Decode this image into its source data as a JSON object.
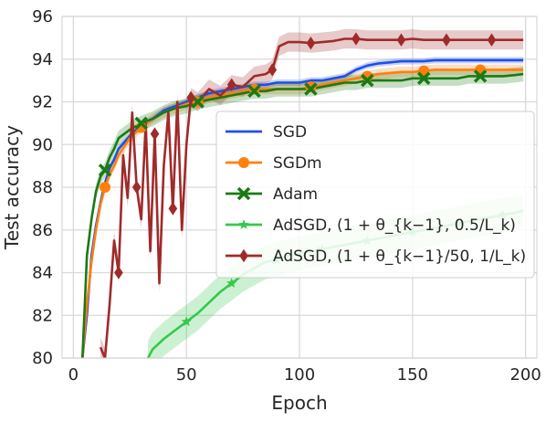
{
  "chart_data": {
    "type": "line",
    "xlabel": "Epoch",
    "ylabel": "Test accuracy",
    "xlim": [
      -5,
      205
    ],
    "ylim": [
      80,
      96
    ],
    "xticks": [
      0,
      50,
      100,
      150,
      200
    ],
    "yticks": [
      80,
      82,
      84,
      86,
      88,
      90,
      92,
      94,
      96
    ],
    "grid": true,
    "legend_position": "center-right",
    "series": [
      {
        "name": "SGD",
        "color": "#1f4fe6",
        "marker": "none",
        "x": [
          4,
          6,
          8,
          10,
          12,
          14,
          16,
          18,
          20,
          25,
          30,
          35,
          40,
          45,
          50,
          55,
          60,
          65,
          70,
          75,
          80,
          85,
          90,
          95,
          100,
          105,
          110,
          115,
          120,
          125,
          130,
          135,
          140,
          145,
          150,
          155,
          160,
          165,
          170,
          175,
          180,
          185,
          190,
          195,
          199
        ],
        "y": [
          80.0,
          82.0,
          84.8,
          86.2,
          87.3,
          88.2,
          88.9,
          89.3,
          89.8,
          90.4,
          90.9,
          91.2,
          91.6,
          91.8,
          92.0,
          92.2,
          92.4,
          92.5,
          92.6,
          92.7,
          92.8,
          92.8,
          92.9,
          92.9,
          92.9,
          93.0,
          93.0,
          93.1,
          93.2,
          93.5,
          93.7,
          93.8,
          93.85,
          93.9,
          93.9,
          93.9,
          93.95,
          93.95,
          93.95,
          93.95,
          93.95,
          93.95,
          93.95,
          93.95,
          93.95
        ],
        "band": 0.15
      },
      {
        "name": "SGDm",
        "color": "#ff7f0e",
        "marker": "circle",
        "x": [
          4,
          6,
          8,
          10,
          12,
          14,
          16,
          18,
          20,
          25,
          30,
          35,
          40,
          45,
          50,
          55,
          60,
          65,
          70,
          75,
          80,
          85,
          90,
          95,
          100,
          105,
          110,
          115,
          120,
          125,
          130,
          135,
          140,
          145,
          150,
          155,
          160,
          165,
          170,
          175,
          180,
          185,
          190,
          195,
          199
        ],
        "y": [
          80.0,
          82.5,
          84.5,
          86.0,
          87.2,
          88.0,
          88.6,
          89.0,
          89.5,
          90.3,
          90.8,
          91.2,
          91.5,
          91.7,
          91.9,
          92.0,
          92.2,
          92.3,
          92.4,
          92.5,
          92.6,
          92.6,
          92.6,
          92.6,
          92.6,
          92.7,
          92.8,
          92.9,
          93.0,
          93.1,
          93.2,
          93.3,
          93.35,
          93.4,
          93.4,
          93.45,
          93.5,
          93.5,
          93.5,
          93.5,
          93.5,
          93.5,
          93.5,
          93.5,
          93.5
        ],
        "band": 0.25
      },
      {
        "name": "Adam",
        "color": "#1a7a14",
        "marker": "x",
        "x": [
          4,
          6,
          8,
          10,
          12,
          14,
          16,
          18,
          20,
          25,
          30,
          35,
          40,
          45,
          50,
          55,
          60,
          65,
          70,
          75,
          80,
          85,
          90,
          95,
          100,
          105,
          110,
          115,
          120,
          125,
          130,
          135,
          140,
          145,
          150,
          155,
          160,
          165,
          170,
          175,
          180,
          185,
          190,
          195,
          199
        ],
        "y": [
          80.0,
          84.8,
          86.5,
          87.8,
          88.5,
          88.8,
          89.4,
          89.8,
          90.3,
          90.7,
          91.0,
          91.2,
          91.5,
          91.7,
          91.8,
          92.0,
          92.1,
          92.2,
          92.3,
          92.4,
          92.5,
          92.5,
          92.6,
          92.6,
          92.6,
          92.6,
          92.7,
          92.8,
          92.9,
          92.9,
          93.0,
          93.0,
          93.0,
          93.0,
          93.1,
          93.1,
          93.1,
          93.1,
          93.1,
          93.2,
          93.2,
          93.2,
          93.2,
          93.25,
          93.3
        ],
        "band": 0.35
      },
      {
        "name": "AdSGD, (1 + θ_{k−1}, 0.5/L_k)",
        "color": "#34c94a",
        "marker": "star",
        "x": [
          33,
          35,
          40,
          45,
          50,
          55,
          60,
          65,
          70,
          75,
          80,
          85,
          90,
          95,
          100,
          105,
          110,
          115,
          120,
          125,
          130,
          135,
          140,
          145,
          150,
          155,
          160,
          165,
          170,
          175,
          180,
          185,
          190,
          195,
          199
        ],
        "y": [
          80.0,
          80.4,
          80.9,
          81.3,
          81.7,
          82.1,
          82.6,
          83.1,
          83.5,
          83.9,
          84.2,
          84.5,
          84.6,
          84.8,
          84.9,
          85.0,
          85.1,
          85.2,
          85.3,
          85.4,
          85.5,
          85.6,
          85.7,
          85.8,
          85.9,
          86.0,
          86.1,
          86.2,
          86.3,
          86.4,
          86.5,
          86.6,
          86.7,
          86.8,
          86.9
        ],
        "band": 0.8
      },
      {
        "name": "AdSGD, (1 + θ_{k−1}/50, 1/L_k)",
        "color": "#a02a2a",
        "marker": "diamond",
        "x": [
          12,
          14,
          16,
          18,
          20,
          22,
          24,
          26,
          28,
          30,
          32,
          34,
          36,
          38,
          40,
          42,
          44,
          46,
          48,
          50,
          52,
          55,
          60,
          65,
          70,
          75,
          80,
          85,
          88,
          91,
          95,
          100,
          105,
          110,
          115,
          120,
          125,
          130,
          135,
          140,
          145,
          150,
          155,
          160,
          165,
          170,
          175,
          180,
          185,
          190,
          195,
          199
        ],
        "y": [
          80.5,
          80.0,
          82.5,
          85.5,
          84.0,
          89.5,
          87.5,
          91.5,
          88.0,
          86.5,
          91.0,
          85.0,
          90.5,
          83.5,
          89.0,
          91.5,
          87.0,
          92.0,
          86.0,
          90.0,
          92.2,
          92.0,
          92.6,
          92.3,
          92.8,
          92.7,
          93.2,
          93.3,
          93.5,
          94.6,
          94.8,
          94.8,
          94.75,
          94.8,
          94.85,
          94.95,
          94.95,
          94.9,
          94.9,
          94.9,
          94.9,
          94.95,
          94.9,
          94.9,
          94.9,
          94.9,
          94.9,
          94.9,
          94.9,
          94.9,
          94.9,
          94.9
        ],
        "band": 0.45
      }
    ]
  }
}
